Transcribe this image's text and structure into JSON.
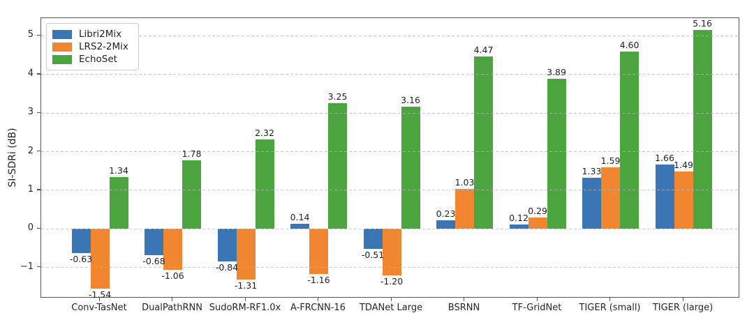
{
  "chart_data": {
    "type": "bar",
    "title": "",
    "xlabel": "",
    "ylabel": "SI-SDRi (dB)",
    "categories": [
      "Conv-TasNet",
      "DualPathRNN",
      "SudoRM-RF1.0x",
      "A-FRCNN-16",
      "TDANet Large",
      "BSRNN",
      "TF-GridNet",
      "TIGER (small)",
      "TIGER (large)"
    ],
    "series": [
      {
        "name": "Libri2Mix",
        "color": "#3b76b4",
        "values": [
          -0.63,
          -0.68,
          -0.84,
          0.14,
          -0.51,
          0.23,
          0.12,
          1.33,
          1.66
        ]
      },
      {
        "name": "LRS2-2Mix",
        "color": "#f0862f",
        "values": [
          -1.54,
          -1.06,
          -1.31,
          -1.16,
          -1.2,
          1.03,
          0.29,
          1.59,
          1.49
        ]
      },
      {
        "name": "EchoSet",
        "color": "#4ba43e",
        "values": [
          1.34,
          1.78,
          2.32,
          3.25,
          3.16,
          4.47,
          3.89,
          4.6,
          5.16
        ]
      }
    ],
    "ylim": [
      -1.8,
      5.46
    ],
    "yticks": [
      -1,
      0,
      1,
      2,
      3,
      4,
      5
    ],
    "grid": "horizontal-dashed",
    "legend_position": "upper-left",
    "value_labels": true,
    "value_label_decimals": 2
  },
  "style": {
    "spine_color": "#555555",
    "grid_color": "#d9d9d9",
    "text_color": "#1f1f1f"
  }
}
